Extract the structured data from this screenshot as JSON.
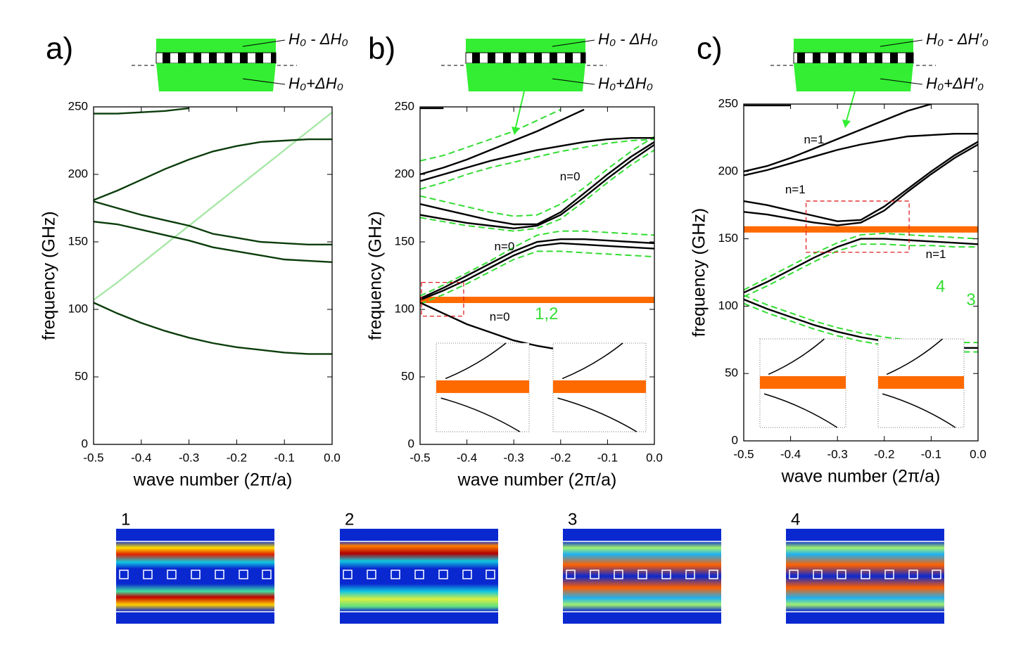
{
  "chart_data": [
    {
      "type": "line",
      "title": "a)",
      "xlabel": "wave number (2π/a)",
      "ylabel": "frequency (GHz)",
      "top_label": "H₀ - ΔH₀",
      "bottom_label": "H₀+ΔH₀",
      "xlim": [
        -0.5,
        0
      ],
      "ylim": [
        0,
        250
      ],
      "xticks": [
        -0.5,
        -0.4,
        -0.3,
        -0.2,
        -0.1,
        {
          "value": 0,
          "label": "0.0"
        }
      ],
      "yticks": [
        0,
        50,
        100,
        150,
        200,
        250
      ],
      "x": [
        -0.5,
        -0.45,
        -0.4,
        -0.35,
        -0.3,
        -0.25,
        -0.2,
        -0.15,
        -0.1,
        -0.05,
        0
      ],
      "series": [
        {
          "color": "#a8e8a8",
          "values": [
            107,
            120,
            134,
            148,
            162,
            176,
            190,
            204,
            218,
            232,
            246
          ]
        },
        {
          "color": "#0b3d0b",
          "values": [
            105,
            97,
            90,
            84,
            79,
            75,
            72,
            70,
            68,
            67,
            67
          ]
        },
        {
          "color": "#0b3d0b",
          "values": [
            165,
            163,
            159,
            155,
            151,
            146,
            143,
            140,
            137,
            136,
            135
          ]
        },
        {
          "color": "#0b3d0b",
          "values": [
            180,
            175,
            170,
            166,
            162,
            156,
            153,
            150,
            149,
            148,
            148
          ]
        },
        {
          "color": "#0b3d0b",
          "values": [
            245,
            245,
            246,
            247,
            249,
            null,
            null,
            null,
            null,
            null,
            null
          ]
        },
        {
          "color": "#0b3d0b",
          "values": [
            181,
            188,
            196,
            204,
            211,
            217,
            221,
            224,
            225,
            226,
            226
          ]
        }
      ],
      "annotations": []
    },
    {
      "type": "line",
      "title": "b)",
      "xlabel": "wave number (2π/a)",
      "ylabel": "frequency (GHz)",
      "top_label": "H₀ - ΔH₀",
      "bottom_label": "H₀+ΔH₀",
      "xlim": [
        -0.5,
        0
      ],
      "ylim": [
        0,
        250
      ],
      "xticks": [
        -0.5,
        -0.4,
        -0.3,
        -0.2,
        -0.1,
        {
          "value": 0,
          "label": "0.0"
        }
      ],
      "yticks": [
        0,
        50,
        100,
        150,
        200,
        250
      ],
      "x": [
        -0.5,
        -0.45,
        -0.4,
        -0.35,
        -0.3,
        -0.25,
        -0.2,
        -0.15,
        -0.1,
        -0.05,
        0
      ],
      "highlight": 107,
      "box": {
        "x": [
          -0.5,
          -0.41
        ],
        "y": [
          95,
          120
        ]
      },
      "series": [
        {
          "color": "#33dd33",
          "dash": true,
          "values": [
            110,
            118,
            127,
            136,
            146,
            155,
            158,
            158,
            157,
            156,
            155
          ]
        },
        {
          "color": "#33dd33",
          "dash": true,
          "values": [
            104,
            111,
            119,
            128,
            137,
            143,
            143,
            142,
            141,
            140,
            139
          ]
        },
        {
          "color": "#33dd33",
          "dash": true,
          "values": [
            184,
            180,
            176,
            172,
            169,
            170,
            178,
            190,
            204,
            217,
            228
          ]
        },
        {
          "color": "#33dd33",
          "dash": true,
          "values": [
            168,
            165,
            162,
            160,
            158,
            160,
            167,
            180,
            194,
            207,
            218
          ]
        },
        {
          "color": "#33dd33",
          "dash": true,
          "values": [
            210,
            214,
            220,
            226,
            232,
            240,
            248,
            null,
            null,
            null,
            null
          ]
        },
        {
          "color": "#33dd33",
          "dash": true,
          "values": [
            189,
            194,
            200,
            205,
            209,
            213,
            217,
            220,
            223,
            225,
            226
          ]
        },
        {
          "color": "#000000",
          "values": [
            105,
            97,
            89,
            83,
            77,
            73,
            70,
            null,
            null,
            null,
            null
          ]
        },
        {
          "color": "#000000",
          "values": [
            108,
            116,
            125,
            134,
            143,
            150,
            152,
            152,
            151,
            150,
            149
          ]
        },
        {
          "color": "#000000",
          "values": [
            107,
            114,
            122,
            131,
            140,
            147,
            149,
            148,
            147,
            146,
            145
          ]
        },
        {
          "color": "#000000",
          "values": [
            178,
            174,
            170,
            166,
            163,
            163,
            172,
            186,
            200,
            213,
            224
          ]
        },
        {
          "color": "#000000",
          "values": [
            170,
            167,
            164,
            162,
            160,
            162,
            170,
            183,
            197,
            210,
            222
          ]
        },
        {
          "color": "#000000",
          "values": [
            200,
            205,
            211,
            218,
            225,
            232,
            240,
            248,
            null,
            null,
            null
          ]
        },
        {
          "color": "#000000",
          "values": [
            195,
            200,
            205,
            210,
            214,
            218,
            221,
            224,
            226,
            227,
            227
          ]
        },
        {
          "color": "#000000",
          "values": [
            249,
            249,
            null,
            null,
            null,
            null,
            null,
            null,
            null,
            null,
            null
          ]
        }
      ],
      "annotations": [
        {
          "text": "n=0",
          "x": -0.18,
          "y": 198,
          "color": "#000000"
        },
        {
          "text": "n=0",
          "x": -0.32,
          "y": 146,
          "color": "#000000"
        },
        {
          "text": "n=0",
          "x": -0.33,
          "y": 94,
          "color": "#000000"
        },
        {
          "text": "1,2",
          "x": -0.23,
          "y": 96,
          "color": "#33dd33"
        }
      ]
    },
    {
      "type": "line",
      "title": "c)",
      "xlabel": "wave number (2π/a)",
      "ylabel": "frequency (GHz)",
      "top_label": "H₀ - ΔH′₀",
      "bottom_label": "H₀+ΔH′₀",
      "xlim": [
        -0.5,
        0
      ],
      "ylim": [
        0,
        250
      ],
      "xticks": [
        -0.5,
        -0.4,
        -0.3,
        -0.2,
        -0.1,
        {
          "value": 0,
          "label": "0.0"
        }
      ],
      "yticks": [
        0,
        50,
        100,
        150,
        200,
        250
      ],
      "x": [
        -0.5,
        -0.45,
        -0.4,
        -0.35,
        -0.3,
        -0.25,
        -0.2,
        -0.15,
        -0.1,
        -0.05,
        0
      ],
      "highlight": 157,
      "box": {
        "x": [
          -0.37,
          -0.15
        ],
        "y": [
          140,
          178
        ]
      },
      "series": [
        {
          "color": "#33dd33",
          "dash": true,
          "values": [
            108,
            101,
            95,
            89,
            84,
            80,
            77,
            75,
            74,
            73,
            73
          ]
        },
        {
          "color": "#33dd33",
          "dash": true,
          "values": [
            102,
            95,
            89,
            83,
            78,
            74,
            71,
            69,
            67,
            66,
            66
          ]
        },
        {
          "color": "#33dd33",
          "dash": true,
          "values": [
            112,
            121,
            130,
            139,
            147,
            153,
            154,
            153,
            152,
            151,
            150
          ]
        },
        {
          "color": "#33dd33",
          "dash": true,
          "values": [
            107,
            115,
            124,
            133,
            141,
            146,
            146,
            145,
            145,
            144,
            144
          ]
        },
        {
          "color": "#000000",
          "values": [
            105,
            98,
            92,
            86,
            81,
            77,
            74,
            72,
            70,
            69,
            69
          ]
        },
        {
          "color": "#000000",
          "values": [
            110,
            118,
            127,
            136,
            144,
            150,
            150,
            149,
            148,
            147,
            146
          ]
        },
        {
          "color": "#000000",
          "values": [
            178,
            175,
            171,
            167,
            163,
            164,
            174,
            187,
            200,
            212,
            222
          ]
        },
        {
          "color": "#000000",
          "values": [
            170,
            168,
            165,
            162,
            160,
            162,
            171,
            185,
            198,
            210,
            220
          ]
        },
        {
          "color": "#000000",
          "values": [
            200,
            204,
            210,
            217,
            224,
            231,
            238,
            245,
            250,
            null,
            null
          ]
        },
        {
          "color": "#000000",
          "values": [
            197,
            201,
            206,
            211,
            216,
            220,
            223,
            226,
            227,
            228,
            228
          ]
        },
        {
          "color": "#000000",
          "values": [
            249,
            249,
            249,
            null,
            null,
            null,
            null,
            null,
            null,
            null,
            null
          ]
        }
      ],
      "annotations": [
        {
          "text": "n=1",
          "x": -0.35,
          "y": 223,
          "color": "#000000"
        },
        {
          "text": "n=1",
          "x": -0.39,
          "y": 186,
          "color": "#000000"
        },
        {
          "text": "n=1",
          "x": -0.09,
          "y": 138,
          "color": "#000000"
        },
        {
          "text": "4",
          "x": -0.08,
          "y": 114,
          "color": "#33dd33"
        },
        {
          "text": "3",
          "x": -0.015,
          "y": 104,
          "color": "#33dd33"
        }
      ]
    }
  ],
  "maps": [
    "1",
    "2",
    "3",
    "4"
  ]
}
